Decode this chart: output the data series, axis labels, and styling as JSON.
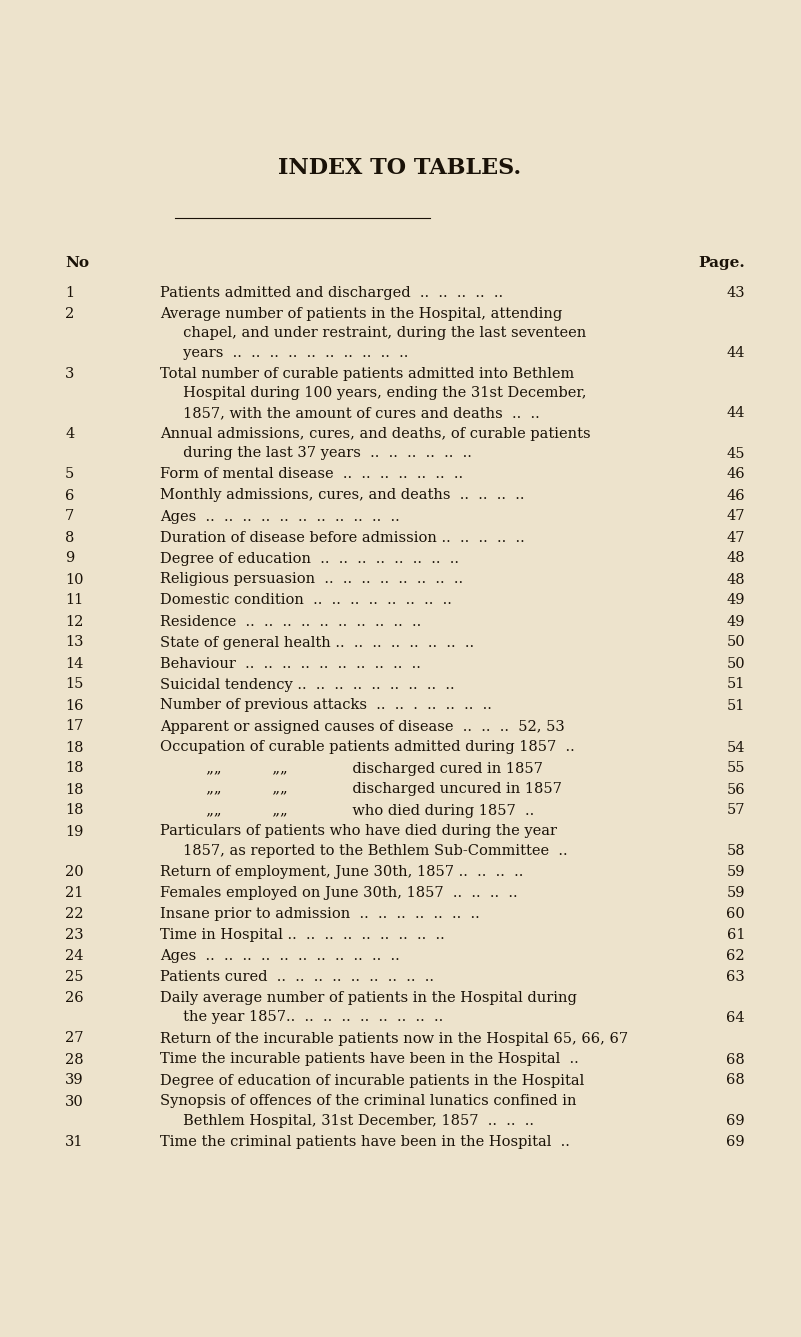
{
  "title": "INDEX TO TABLES.",
  "bg_color": "#ede3cc",
  "text_color": "#1a1208",
  "title_fontsize": 16,
  "body_fontsize": 10.5,
  "entries": [
    {
      "no": "1",
      "lines": [
        "Patients admitted and discharged  ..  ..  ..  ..  .."
      ],
      "page": "43"
    },
    {
      "no": "2",
      "lines": [
        "Average number of patients in the Hospital, attending",
        "     chapel, and under restraint, during the last seventeen",
        "     years  ..  ..  ..  ..  ..  ..  ..  ..  ..  .."
      ],
      "page": "44"
    },
    {
      "no": "3",
      "lines": [
        "Total number of curable patients admitted into Bethlem",
        "     Hospital during 100 years, ending the 31st December,",
        "     1857, with the amount of cures and deaths  ..  .."
      ],
      "page": "44"
    },
    {
      "no": "4",
      "lines": [
        "Annual admissions, cures, and deaths, of curable patients",
        "     during the last 37 years  ..  ..  ..  ..  ..  .."
      ],
      "page": "45"
    },
    {
      "no": "5",
      "lines": [
        "Form of mental disease  ..  ..  ..  ..  ..  ..  .."
      ],
      "page": "46"
    },
    {
      "no": "6",
      "lines": [
        "Monthly admissions, cures, and deaths  ..  ..  ..  .."
      ],
      "page": "46"
    },
    {
      "no": "7",
      "lines": [
        "Ages  ..  ..  ..  ..  ..  ..  ..  ..  ..  ..  .."
      ],
      "page": "47"
    },
    {
      "no": "8",
      "lines": [
        "Duration of disease before admission ..  ..  ..  ..  .."
      ],
      "page": "47"
    },
    {
      "no": "9",
      "lines": [
        "Degree of education  ..  ..  ..  ..  ..  ..  ..  .."
      ],
      "page": "48"
    },
    {
      "no": "10",
      "lines": [
        "Religious persuasion  ..  ..  ..  ..  ..  ..  ..  .."
      ],
      "page": "48"
    },
    {
      "no": "11",
      "lines": [
        "Domestic condition  ..  ..  ..  ..  ..  ..  ..  .."
      ],
      "page": "49"
    },
    {
      "no": "12",
      "lines": [
        "Residence  ..  ..  ..  ..  ..  ..  ..  ..  ..  .."
      ],
      "page": "49"
    },
    {
      "no": "13",
      "lines": [
        "State of general health ..  ..  ..  ..  ..  ..  ..  .."
      ],
      "page": "50"
    },
    {
      "no": "14",
      "lines": [
        "Behaviour  ..  ..  ..  ..  ..  ..  ..  ..  ..  .."
      ],
      "page": "50"
    },
    {
      "no": "15",
      "lines": [
        "Suicidal tendency ..  ..  ..  ..  ..  ..  ..  ..  .."
      ],
      "page": "51"
    },
    {
      "no": "16",
      "lines": [
        "Number of previous attacks  ..  ..  .  ..  ..  ..  .."
      ],
      "page": "51"
    },
    {
      "no": "17",
      "lines": [
        "Apparent or assigned causes of disease  ..  ..  ..  52, 53"
      ],
      "page": ""
    },
    {
      "no": "18",
      "lines": [
        "Occupation of curable patients admitted during 1857  .."
      ],
      "page": "54"
    },
    {
      "no": "18",
      "lines": [
        "          „„           „„              discharged cured in 1857"
      ],
      "page": "55"
    },
    {
      "no": "18",
      "lines": [
        "          „„           „„              discharged uncured in 1857"
      ],
      "page": "56"
    },
    {
      "no": "18",
      "lines": [
        "          „„           „„              who died during 1857  .."
      ],
      "page": "57"
    },
    {
      "no": "19",
      "lines": [
        "Particulars of patients who have died during the year",
        "     1857, as reported to the Bethlem Sub-Committee  .."
      ],
      "page": "58"
    },
    {
      "no": "20",
      "lines": [
        "Return of employment, June 30th, 1857 ..  ..  ..  .."
      ],
      "page": "59"
    },
    {
      "no": "21",
      "lines": [
        "Females employed on June 30th, 1857  ..  ..  ..  .."
      ],
      "page": "59"
    },
    {
      "no": "22",
      "lines": [
        "Insane prior to admission  ..  ..  ..  ..  ..  ..  .."
      ],
      "page": "60"
    },
    {
      "no": "23",
      "lines": [
        "Time in Hospital ..  ..  ..  ..  ..  ..  ..  ..  .."
      ],
      "page": "61"
    },
    {
      "no": "24",
      "lines": [
        "Ages  ..  ..  ..  ..  ..  ..  ..  ..  ..  ..  .."
      ],
      "page": "62"
    },
    {
      "no": "25",
      "lines": [
        "Patients cured  ..  ..  ..  ..  ..  ..  ..  ..  .."
      ],
      "page": "63"
    },
    {
      "no": "26",
      "lines": [
        "Daily average number of patients in the Hospital during",
        "     the year 1857..  ..  ..  ..  ..  ..  ..  ..  .."
      ],
      "page": "64"
    },
    {
      "no": "27",
      "lines": [
        "Return of the incurable patients now in the Hospital 65, 66, 67"
      ],
      "page": ""
    },
    {
      "no": "28",
      "lines": [
        "Time the incurable patients have been in the Hospital  .."
      ],
      "page": "68"
    },
    {
      "no": "39",
      "lines": [
        "Degree of education of incurable patients in the Hospital"
      ],
      "page": "68"
    },
    {
      "no": "30",
      "lines": [
        "Synopsis of offences of the criminal lunatics confined in",
        "     Bethlem Hospital, 31st December, 1857  ..  ..  .."
      ],
      "page": "69"
    },
    {
      "no": "31",
      "lines": [
        "Time the criminal patients have been in the Hospital  .."
      ],
      "page": "69"
    }
  ]
}
